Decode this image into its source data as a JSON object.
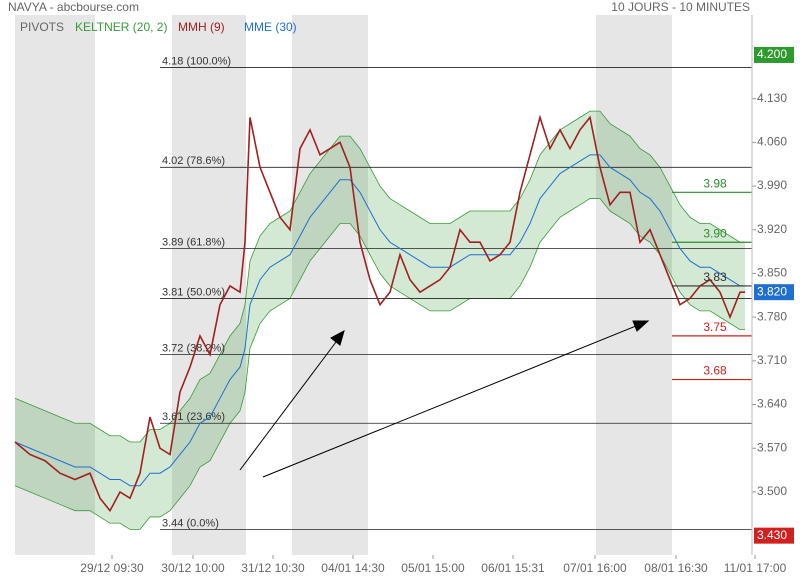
{
  "chart_data": {
    "type": "line",
    "title": "NAVYA - abcbourse.com",
    "subtitle": "10 JOURS - 10 MINUTES",
    "pivots_label": "PIVOTS",
    "x": [
      0,
      15,
      30,
      45,
      60,
      75,
      85,
      95,
      105,
      115,
      125,
      135,
      145,
      155,
      165,
      175,
      185,
      195,
      205,
      215,
      225,
      230,
      235,
      245,
      255,
      265,
      275,
      285,
      295,
      305,
      315,
      325,
      335,
      345,
      355,
      365,
      375,
      385,
      395,
      405,
      415,
      425,
      435,
      445,
      455,
      465,
      475,
      485,
      495,
      505,
      515,
      525,
      535,
      545,
      555,
      565,
      575,
      585,
      595,
      605,
      615,
      625,
      635,
      645,
      655,
      665,
      675,
      685,
      695,
      705,
      715,
      725,
      730
    ],
    "xlim": [
      0,
      737
    ],
    "xticks": [
      {
        "value": 97,
        "label": "29/12 09:30"
      },
      {
        "value": 178,
        "label": "30/12 10:00"
      },
      {
        "value": 258,
        "label": "31/12 10:30"
      },
      {
        "value": 338,
        "label": "04/01 14:30"
      },
      {
        "value": 418,
        "label": "05/01 15:00"
      },
      {
        "value": 498,
        "label": "06/01 15:31"
      },
      {
        "value": 580,
        "label": "07/01 16:00"
      },
      {
        "value": 661,
        "label": "08/01 16:30"
      },
      {
        "value": 740,
        "label": "11/01 17:00"
      }
    ],
    "ylim": [
      3.399,
      4.264
    ],
    "yticks": [
      {
        "value": 3.5,
        "label": "3.500"
      },
      {
        "value": 3.57,
        "label": "3.570"
      },
      {
        "value": 3.64,
        "label": "3.640"
      },
      {
        "value": 3.71,
        "label": "3.710"
      },
      {
        "value": 3.78,
        "label": "3.780"
      },
      {
        "value": 3.85,
        "label": "3.850"
      },
      {
        "value": 3.92,
        "label": "3.920"
      },
      {
        "value": 3.99,
        "label": "3.990"
      },
      {
        "value": 4.06,
        "label": "4.060"
      },
      {
        "value": 4.13,
        "label": "4.130"
      }
    ],
    "keltner": {
      "name": "KELTNER (20, 2)",
      "color": "#3a9a3a",
      "upper": [
        3.65,
        3.64,
        3.63,
        3.62,
        3.61,
        3.61,
        3.6,
        3.59,
        3.59,
        3.58,
        3.58,
        3.6,
        3.6,
        3.61,
        3.63,
        3.65,
        3.68,
        3.69,
        3.72,
        3.75,
        3.77,
        3.8,
        3.87,
        3.91,
        3.93,
        3.94,
        3.95,
        3.98,
        4.01,
        4.03,
        4.05,
        4.07,
        4.07,
        4.05,
        4.02,
        3.99,
        3.97,
        3.96,
        3.95,
        3.94,
        3.93,
        3.93,
        3.93,
        3.94,
        3.95,
        3.95,
        3.95,
        3.95,
        3.95,
        3.97,
        4.0,
        4.04,
        4.06,
        4.08,
        4.09,
        4.1,
        4.11,
        4.11,
        4.09,
        4.08,
        4.07,
        4.05,
        4.04,
        4.02,
        3.99,
        3.96,
        3.94,
        3.93,
        3.93,
        3.92,
        3.91,
        3.9,
        3.9
      ],
      "lower": [
        3.51,
        3.5,
        3.49,
        3.48,
        3.47,
        3.47,
        3.46,
        3.45,
        3.45,
        3.44,
        3.44,
        3.46,
        3.46,
        3.47,
        3.49,
        3.51,
        3.54,
        3.55,
        3.58,
        3.61,
        3.63,
        3.66,
        3.73,
        3.77,
        3.79,
        3.8,
        3.81,
        3.84,
        3.87,
        3.89,
        3.91,
        3.93,
        3.93,
        3.91,
        3.88,
        3.85,
        3.83,
        3.82,
        3.81,
        3.8,
        3.79,
        3.79,
        3.79,
        3.8,
        3.81,
        3.81,
        3.81,
        3.81,
        3.81,
        3.83,
        3.86,
        3.9,
        3.92,
        3.94,
        3.95,
        3.96,
        3.97,
        3.97,
        3.95,
        3.94,
        3.93,
        3.91,
        3.9,
        3.88,
        3.85,
        3.82,
        3.8,
        3.79,
        3.79,
        3.78,
        3.77,
        3.76,
        3.76
      ]
    },
    "series": [
      {
        "name": "MME (30)",
        "color": "#1f6fd0",
        "values": [
          3.58,
          3.57,
          3.56,
          3.55,
          3.54,
          3.54,
          3.53,
          3.52,
          3.52,
          3.51,
          3.51,
          3.53,
          3.53,
          3.54,
          3.56,
          3.58,
          3.61,
          3.62,
          3.65,
          3.68,
          3.7,
          3.73,
          3.8,
          3.84,
          3.86,
          3.87,
          3.88,
          3.91,
          3.94,
          3.96,
          3.98,
          4.0,
          4.0,
          3.98,
          3.95,
          3.92,
          3.9,
          3.89,
          3.88,
          3.87,
          3.86,
          3.86,
          3.86,
          3.87,
          3.88,
          3.88,
          3.88,
          3.88,
          3.88,
          3.9,
          3.93,
          3.97,
          3.99,
          4.01,
          4.02,
          4.03,
          4.04,
          4.04,
          4.02,
          4.01,
          4.0,
          3.98,
          3.97,
          3.95,
          3.92,
          3.89,
          3.87,
          3.86,
          3.86,
          3.85,
          3.84,
          3.83,
          3.83
        ]
      },
      {
        "name": "MMH (9)",
        "color": "#a02020",
        "values": [
          3.58,
          3.56,
          3.55,
          3.53,
          3.52,
          3.53,
          3.49,
          3.47,
          3.5,
          3.49,
          3.53,
          3.62,
          3.57,
          3.56,
          3.66,
          3.7,
          3.75,
          3.72,
          3.8,
          3.83,
          3.82,
          3.9,
          4.1,
          4.02,
          3.98,
          3.94,
          3.92,
          4.05,
          4.08,
          4.04,
          4.05,
          4.06,
          4.02,
          3.9,
          3.84,
          3.8,
          3.82,
          3.88,
          3.84,
          3.82,
          3.83,
          3.84,
          3.86,
          3.92,
          3.9,
          3.9,
          3.87,
          3.88,
          3.9,
          3.98,
          4.04,
          4.1,
          4.05,
          4.08,
          4.05,
          4.08,
          4.1,
          4.02,
          3.96,
          3.98,
          3.98,
          3.9,
          3.92,
          3.88,
          3.84,
          3.8,
          3.81,
          3.83,
          3.84,
          3.82,
          3.78,
          3.82,
          3.82
        ]
      }
    ],
    "fibonacci": [
      {
        "value": 4.18,
        "label": "4.18 (100.0%)"
      },
      {
        "value": 4.02,
        "label": "4.02 (78.6%)"
      },
      {
        "value": 3.89,
        "label": "3.89 (61.8%)"
      },
      {
        "value": 3.81,
        "label": "3.81 (50.0%)"
      },
      {
        "value": 3.72,
        "label": "3.72 (38.2%)"
      },
      {
        "value": 3.61,
        "label": "3.61 (23.6%)"
      },
      {
        "value": 3.44,
        "label": "3.44 (0.0%)"
      }
    ],
    "pivots": [
      {
        "value": 3.98,
        "label": "3.98",
        "color": "#2e8b2e"
      },
      {
        "value": 3.9,
        "label": "3.90",
        "color": "#2e8b2e"
      },
      {
        "value": 3.83,
        "label": "3.83",
        "color": "#333333"
      },
      {
        "value": 3.75,
        "label": "3.75",
        "color": "#d02020"
      },
      {
        "value": 3.68,
        "label": "3.68",
        "color": "#d02020"
      }
    ],
    "price_tags": [
      {
        "value": 4.2,
        "label": "4.200",
        "color": "#2e9a2e"
      },
      {
        "value": 3.82,
        "label": "3.820",
        "color": "#1f6fd0"
      },
      {
        "value": 3.43,
        "label": "3.430",
        "color": "#d02020"
      }
    ]
  }
}
